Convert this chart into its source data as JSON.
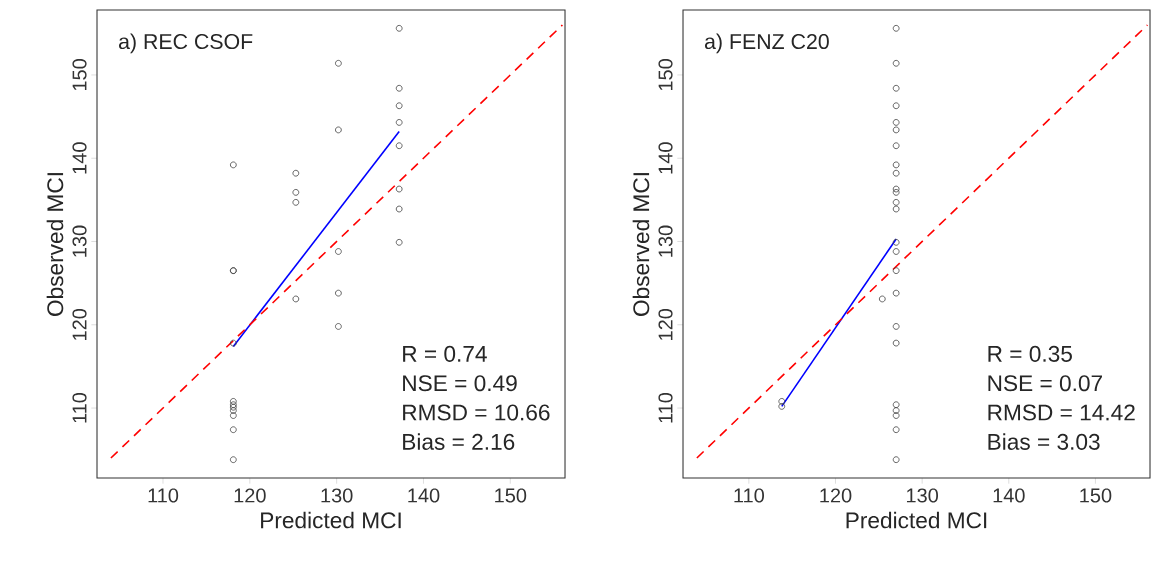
{
  "chart_data": [
    {
      "type": "scatter",
      "title": "a) REC CSOF",
      "xlabel": "Predicted MCI",
      "ylabel": "Observed MCI",
      "xlim": [
        102.4,
        156.3
      ],
      "ylim": [
        101.6,
        157.8
      ],
      "xticks": [
        110,
        120,
        130,
        140,
        150
      ],
      "yticks": [
        110,
        120,
        130,
        140,
        150
      ],
      "annotations": [
        "R = 0.74",
        "NSE =  0.49",
        "RMSD = 10.66",
        "Bias = 2.16"
      ],
      "series": [
        {
          "color": "#404040",
          "marker": "circle",
          "x": [
            118.1,
            118.1,
            118.1,
            118.1,
            118.1,
            118.1,
            118.1,
            118.1,
            118.1,
            118.1,
            118.1,
            125.3,
            125.3,
            125.3,
            125.3,
            130.2,
            130.2,
            130.2,
            130.2,
            130.2,
            137.2,
            137.2,
            137.2,
            137.2,
            137.2,
            137.2,
            137.2,
            137.2
          ],
          "values": [
            139.2,
            126.5,
            126.5,
            117.8,
            110.8,
            110.4,
            110.1,
            109.7,
            109.1,
            107.4,
            103.8,
            138.2,
            135.9,
            134.7,
            123.1,
            151.4,
            143.4,
            128.8,
            123.8,
            119.8,
            155.6,
            148.4,
            146.3,
            144.3,
            141.5,
            136.3,
            133.9,
            129.9
          ]
        },
        {
          "type": "line",
          "color": "#0000ff",
          "line_style": "solid",
          "x": [
            118.1,
            137.2
          ],
          "values": [
            117.4,
            143.2
          ]
        },
        {
          "type": "line",
          "color": "#ff0000",
          "line_style": "dashed",
          "x": [
            104,
            156
          ],
          "values": [
            104,
            156
          ]
        }
      ]
    },
    {
      "type": "scatter",
      "title": "a) FENZ C20",
      "xlabel": "Predicted MCI",
      "ylabel": "Observed MCI",
      "xlim": [
        102.4,
        156.3
      ],
      "ylim": [
        101.6,
        157.8
      ],
      "xticks": [
        110,
        120,
        130,
        140,
        150
      ],
      "yticks": [
        110,
        120,
        130,
        140,
        150
      ],
      "annotations": [
        "R = 0.35",
        "NSE =  0.07",
        "RMSD = 14.42",
        "Bias = 3.03"
      ],
      "series": [
        {
          "color": "#404040",
          "marker": "circle",
          "x": [
            127.0,
            127.0,
            127.0,
            127.0,
            127.0,
            127.0,
            127.0,
            127.0,
            127.0,
            127.0,
            127.0,
            127.0,
            127.0,
            127.0,
            127.0,
            127.0,
            127.0,
            127.0,
            127.0,
            127.0,
            127.0,
            127.0,
            127.0,
            127.0,
            125.4,
            113.8,
            113.8
          ],
          "values": [
            155.6,
            151.4,
            148.4,
            146.3,
            144.3,
            143.4,
            141.5,
            139.2,
            138.2,
            136.3,
            135.9,
            134.7,
            133.9,
            129.9,
            128.8,
            126.5,
            123.8,
            119.8,
            117.8,
            110.4,
            109.7,
            109.1,
            107.4,
            103.8,
            123.1,
            110.8,
            110.2
          ]
        },
        {
          "type": "line",
          "color": "#0000ff",
          "line_style": "solid",
          "x": [
            113.8,
            127.0
          ],
          "values": [
            110.2,
            130.3
          ]
        },
        {
          "type": "line",
          "color": "#ff0000",
          "line_style": "dashed",
          "x": [
            104,
            156
          ],
          "values": [
            104,
            156
          ]
        }
      ]
    }
  ]
}
